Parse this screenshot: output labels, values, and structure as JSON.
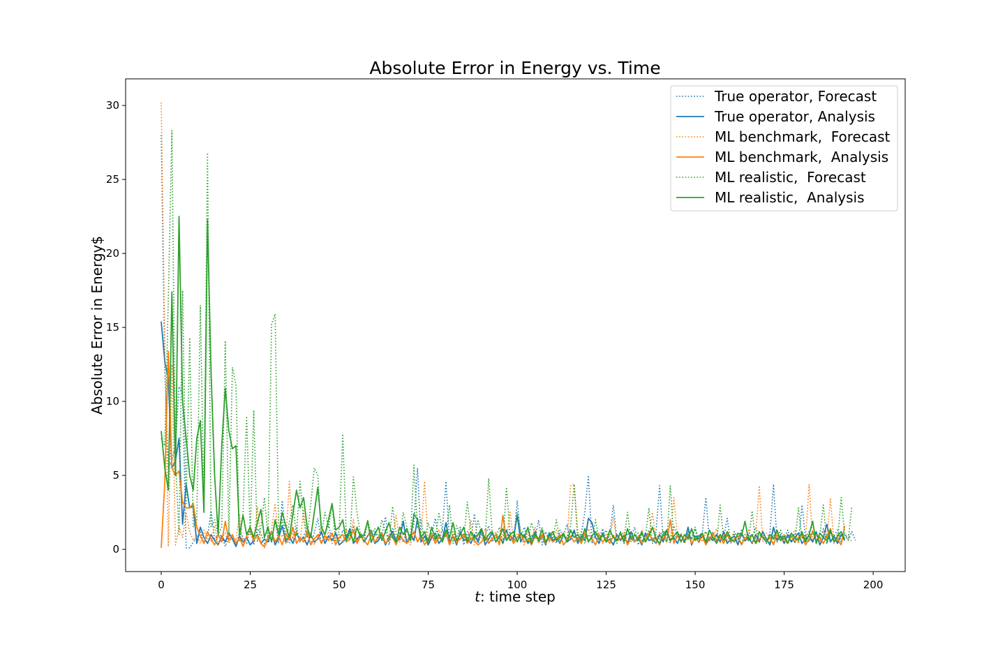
{
  "chart_data": {
    "type": "line",
    "title": "Absolute Error in Energy vs. Time",
    "xlabel_italic": "t",
    "xlabel": ": time step",
    "ylabel": "Absolute Error in Energy$",
    "xlim": [
      -10,
      209
    ],
    "ylim": [
      -1.5,
      31.8
    ],
    "xticks": [
      0,
      25,
      50,
      75,
      100,
      125,
      150,
      175,
      200
    ],
    "yticks": [
      0,
      5,
      10,
      15,
      20,
      25,
      30
    ],
    "grid": false,
    "legend_position": "upper right",
    "series": [
      {
        "name": "True operator, Forecast",
        "color": "#1f77b4",
        "style": "dotted",
        "x_start": 0,
        "values": [
          28.0,
          12.0,
          5.5,
          6.0,
          7.0,
          11.0,
          10.5,
          0.1,
          0.1,
          0.5,
          0.8,
          1.2,
          0.4,
          0.8,
          2.6,
          0.7,
          1.0,
          0.9,
          0.2,
          0.9,
          0.9,
          0.2,
          1.2,
          0.8,
          0.4,
          1.5,
          0.3,
          1.4,
          1.1,
          0.4,
          0.6,
          0.5,
          2.0,
          0.4,
          3.3,
          0.6,
          0.4,
          0.8,
          1.5,
          0.5,
          0.9,
          1.4,
          0.3,
          1.1,
          2.1,
          0.4,
          1.0,
          1.7,
          0.6,
          1.2,
          0.5,
          1.3,
          0.9,
          0.7,
          1.6,
          0.5,
          1.1,
          0.8,
          1.9,
          0.4,
          1.2,
          0.6,
          1.0,
          2.2,
          0.3,
          1.4,
          0.7,
          1.1,
          0.5,
          1.3,
          0.8,
          1.7,
          5.5,
          0.6,
          1.2,
          0.4,
          1.0,
          2.1,
          0.7,
          1.3,
          4.6,
          0.5,
          1.1,
          0.8,
          1.5,
          0.3,
          1.2,
          0.6,
          2.4,
          0.4,
          1.1,
          0.9,
          1.6,
          0.5,
          1.0,
          0.7,
          1.4,
          0.6,
          1.2,
          0.4,
          3.3,
          0.8,
          1.5,
          0.5,
          1.0,
          0.7,
          2.0,
          0.3,
          1.2,
          0.6,
          1.1,
          0.4,
          1.3,
          0.9,
          1.7,
          0.6,
          1.2,
          0.5,
          1.0,
          2.5,
          5.0,
          0.4,
          1.1,
          0.7,
          1.4,
          0.5,
          1.0,
          3.0,
          0.6,
          1.2,
          0.4,
          1.1,
          0.8,
          1.5,
          0.3,
          1.0,
          0.7,
          1.3,
          0.5,
          1.2,
          4.3,
          0.6,
          1.1,
          0.4,
          1.6,
          0.8,
          1.0,
          0.5,
          1.2,
          0.7,
          1.4,
          0.4,
          1.1,
          3.5,
          0.6,
          1.2,
          0.5,
          1.0,
          0.8,
          2.1,
          0.4,
          1.1,
          0.7,
          1.3,
          0.5,
          1.0,
          0.9,
          1.5,
          0.6,
          1.2,
          0.4,
          1.1,
          4.4,
          0.5,
          1.0,
          0.7,
          1.3,
          0.6,
          1.1,
          0.4,
          3.0,
          0.8,
          1.2,
          0.5,
          1.0,
          0.6,
          1.4,
          0.4,
          1.1,
          0.9,
          1.3,
          0.5,
          1.0,
          0.7,
          1.2,
          0.6
        ]
      },
      {
        "name": "True operator, Analysis",
        "color": "#1f77b4",
        "style": "solid",
        "x_start": 0,
        "values": [
          15.4,
          12.7,
          11.5,
          5.5,
          6.0,
          7.5,
          1.7,
          4.4,
          2.8,
          2.9,
          0.4,
          1.5,
          0.8,
          0.4,
          1.0,
          0.6,
          0.3,
          0.9,
          0.5,
          1.1,
          0.7,
          0.2,
          0.9,
          0.5,
          0.8,
          0.3,
          0.6,
          1.0,
          0.4,
          0.7,
          0.5,
          1.2,
          0.3,
          0.8,
          1.6,
          0.5,
          0.9,
          0.4,
          1.1,
          0.6,
          0.8,
          0.3,
          1.0,
          0.5,
          0.7,
          1.2,
          0.4,
          0.9,
          0.6,
          1.1,
          0.3,
          0.5,
          0.8,
          1.4,
          0.4,
          0.7,
          1.0,
          0.5,
          0.9,
          1.3,
          0.4,
          0.6,
          1.0,
          0.3,
          0.8,
          1.2,
          0.5,
          0.7,
          1.9,
          0.4,
          1.0,
          0.6,
          2.1,
          0.5,
          0.9,
          0.3,
          0.8,
          1.1,
          0.4,
          0.7,
          1.8,
          0.5,
          0.9,
          0.3,
          1.2,
          0.6,
          0.8,
          0.4,
          1.0,
          0.5,
          1.4,
          0.3,
          0.7,
          1.1,
          0.5,
          0.9,
          0.4,
          1.3,
          0.6,
          0.8,
          2.3,
          0.5,
          1.0,
          0.4,
          0.7,
          1.2,
          0.5,
          0.9,
          0.3,
          1.1,
          0.6,
          0.8,
          0.4,
          1.0,
          0.5,
          0.7,
          1.3,
          0.4,
          0.9,
          0.6,
          2.1,
          1.8,
          0.8,
          0.4,
          1.1,
          0.5,
          0.7,
          0.3,
          1.0,
          0.6,
          0.9,
          0.4,
          1.2,
          0.5,
          0.8,
          0.3,
          1.1,
          0.6,
          0.7,
          0.4,
          1.0,
          0.5,
          1.3,
          0.6,
          0.8,
          0.4,
          1.0,
          0.5,
          1.5,
          0.3,
          0.9,
          0.7,
          1.1,
          0.4,
          0.8,
          0.6,
          1.0,
          0.5,
          1.2,
          0.4,
          0.7,
          0.9,
          0.3,
          1.1,
          0.6,
          0.8,
          0.4,
          1.0,
          0.5,
          1.2,
          0.7,
          0.3,
          1.5,
          0.6,
          0.9,
          0.4,
          1.0,
          0.5,
          0.8,
          1.1,
          0.4,
          0.7,
          0.9,
          0.5,
          1.2,
          0.3,
          0.8,
          1.7,
          0.5,
          0.9,
          0.4,
          1.0,
          0.6
        ]
      },
      {
        "name": "ML benchmark,  Forecast",
        "color": "#ff7f0e",
        "style": "dotted",
        "x_start": 0,
        "values": [
          30.2,
          14.0,
          0.2,
          12.5,
          0.3,
          1.5,
          0.8,
          2.5,
          1.2,
          0.6,
          0.9,
          0.4,
          1.3,
          0.7,
          0.5,
          1.6,
          0.3,
          0.8,
          1.1,
          0.4,
          0.9,
          0.6,
          2.4,
          0.3,
          0.8,
          1.2,
          0.5,
          2.9,
          0.4,
          0.1,
          0.7,
          1.3,
          3.1,
          0.6,
          1.0,
          0.4,
          4.6,
          0.7,
          1.2,
          0.5,
          2.6,
          0.8,
          1.1,
          0.3,
          0.9,
          1.5,
          0.6,
          1.2,
          0.4,
          0.8,
          1.0,
          0.5,
          1.4,
          0.7,
          2.0,
          0.4,
          1.1,
          0.6,
          0.9,
          1.3,
          0.5,
          0.8,
          1.2,
          0.4,
          1.0,
          0.7,
          2.3,
          0.5,
          1.1,
          0.8,
          0.3,
          1.2,
          0.6,
          1.0,
          4.6,
          0.5,
          0.9,
          0.4,
          1.3,
          0.7,
          1.0,
          0.5,
          1.2,
          0.4,
          0.8,
          1.1,
          0.6,
          2.0,
          0.3,
          1.0,
          0.7,
          1.4,
          0.5,
          0.8,
          1.2,
          0.4,
          1.0,
          0.6,
          2.6,
          0.5,
          1.1,
          0.8,
          0.3,
          1.2,
          0.6,
          1.5,
          0.4,
          0.9,
          1.1,
          0.5,
          0.8,
          1.3,
          0.4,
          1.0,
          0.7,
          4.3,
          4.4,
          1.2,
          0.5,
          0.9,
          1.4,
          0.6,
          0.8,
          1.1,
          0.4,
          1.0,
          0.7,
          2.2,
          0.5,
          0.9,
          1.2,
          0.4,
          0.8,
          1.1,
          0.6,
          1.3,
          0.5,
          0.9,
          2.5,
          0.4,
          1.2,
          0.7,
          1.0,
          0.5,
          3.5,
          0.8,
          1.1,
          0.4,
          0.9,
          1.3,
          0.6,
          1.0,
          0.5,
          1.2,
          0.7,
          0.9,
          1.4,
          0.4,
          1.1,
          0.6,
          0.8,
          1.2,
          0.5,
          1.0,
          0.7,
          1.3,
          0.4,
          0.9,
          4.3,
          0.5,
          1.1,
          0.8,
          0.4,
          1.2,
          0.6,
          1.0,
          0.5,
          0.9,
          1.3,
          0.4,
          1.1,
          0.7,
          4.4,
          0.6,
          1.0,
          0.5,
          1.2,
          0.8,
          3.4,
          0.4,
          1.1,
          0.6,
          0.9,
          1.0,
          0.5
        ]
      },
      {
        "name": "ML benchmark,  Analysis",
        "color": "#ff7f0e",
        "style": "solid",
        "x_start": 0,
        "values": [
          0.1,
          4.5,
          13.4,
          5.5,
          5.0,
          5.3,
          3.2,
          2.8,
          2.8,
          3.1,
          1.5,
          0.9,
          0.4,
          1.2,
          0.7,
          0.3,
          1.0,
          0.5,
          1.9,
          0.6,
          1.0,
          0.4,
          0.8,
          0.2,
          0.9,
          1.5,
          0.6,
          1.0,
          0.4,
          0.2,
          0.8,
          1.2,
          0.5,
          0.9,
          0.3,
          1.1,
          0.6,
          1.5,
          0.4,
          0.8,
          0.5,
          1.2,
          0.3,
          0.7,
          1.0,
          0.4,
          0.9,
          0.6,
          1.1,
          0.3,
          0.8,
          1.0,
          0.5,
          0.7,
          1.3,
          0.4,
          0.9,
          0.6,
          0.3,
          1.0,
          0.5,
          0.8,
          1.1,
          0.4,
          0.7,
          0.9,
          0.3,
          1.0,
          0.6,
          0.4,
          0.8,
          1.2,
          0.5,
          0.9,
          0.3,
          0.7,
          1.0,
          0.4,
          0.8,
          0.6,
          1.1,
          0.3,
          0.9,
          0.5,
          0.7,
          1.0,
          0.4,
          0.8,
          0.6,
          0.3,
          0.5,
          0.9,
          0.4,
          0.7,
          1.0,
          0.3,
          2.3,
          0.6,
          0.9,
          0.4,
          0.8,
          1.1,
          0.5,
          0.7,
          0.3,
          0.9,
          0.6,
          1.0,
          0.4,
          0.8,
          0.5,
          0.7,
          1.0,
          0.3,
          0.6,
          0.9,
          0.5,
          0.8,
          0.4,
          1.1,
          0.6,
          0.7,
          0.3,
          1.0,
          0.5,
          0.8,
          0.4,
          0.9,
          0.6,
          0.7,
          1.0,
          0.3,
          0.8,
          0.5,
          0.9,
          0.4,
          0.7,
          1.1,
          0.6,
          0.8,
          0.3,
          1.0,
          0.5,
          2.0,
          0.4,
          0.9,
          0.6,
          0.7,
          1.0,
          0.4,
          0.8,
          0.5,
          0.9,
          0.3,
          0.7,
          1.1,
          0.6,
          0.8,
          0.4,
          1.0,
          0.5,
          0.7,
          0.9,
          0.3,
          0.8,
          0.6,
          1.0,
          0.4,
          0.7,
          0.9,
          0.5,
          0.8,
          0.3,
          1.0,
          0.6,
          0.7,
          0.4,
          0.9,
          0.5,
          0.8,
          1.0,
          0.3,
          0.7,
          1.2,
          0.6,
          0.8,
          0.4,
          0.9,
          1.4,
          0.5,
          0.7,
          0.3,
          1.6
        ]
      },
      {
        "name": "ML realistic,  Forecast",
        "color": "#2ca02c",
        "style": "dotted",
        "x_start": 0,
        "values": [
          7.5,
          7.0,
          17.0,
          28.3,
          6.0,
          1.0,
          17.5,
          3.0,
          14.3,
          1.5,
          2.0,
          16.5,
          3.0,
          26.8,
          1.5,
          2.0,
          1.0,
          1.5,
          14.1,
          1.0,
          12.3,
          11.1,
          0.5,
          2.5,
          9.0,
          1.0,
          9.4,
          0.5,
          1.5,
          3.5,
          0.8,
          15.2,
          15.9,
          1.0,
          2.0,
          0.5,
          1.8,
          3.0,
          1.0,
          4.6,
          2.0,
          0.8,
          3.0,
          5.5,
          5.0,
          1.0,
          2.5,
          1.5,
          3.0,
          0.5,
          1.3,
          7.8,
          1.0,
          0.6,
          4.9,
          2.5,
          1.0,
          0.5,
          2.0,
          1.0,
          1.4,
          0.8,
          2.0,
          1.2,
          0.5,
          2.9,
          1.0,
          0.7,
          2.5,
          1.5,
          0.6,
          5.7,
          1.5,
          2.0,
          0.5,
          1.8,
          1.0,
          0.6,
          2.5,
          1.2,
          0.8,
          3.0,
          0.4,
          1.6,
          1.0,
          0.7,
          3.2,
          1.2,
          0.6,
          2.0,
          1.0,
          0.5,
          4.8,
          1.0,
          0.7,
          1.5,
          0.4,
          4.2,
          1.0,
          0.6,
          2.5,
          1.2,
          0.8,
          0.5,
          1.8,
          1.0,
          0.6,
          1.5,
          0.4,
          1.2,
          0.7,
          2.0,
          0.5,
          1.0,
          0.8,
          1.6,
          4.4,
          0.6,
          1.2,
          0.4,
          1.0,
          0.7,
          2.0,
          0.5,
          0.9,
          1.3,
          0.6,
          1.0,
          0.4,
          1.2,
          0.7,
          2.5,
          0.5,
          0.9,
          1.1,
          0.6,
          0.8,
          2.8,
          0.4,
          1.0,
          0.7,
          1.3,
          0.5,
          4.3,
          0.6,
          1.1,
          0.8,
          0.4,
          1.0,
          0.7,
          1.5,
          0.5,
          0.9,
          1.2,
          0.6,
          0.8,
          0.4,
          3.0,
          0.7,
          1.0,
          0.5,
          1.2,
          0.8,
          0.4,
          1.0,
          0.6,
          2.6,
          0.5,
          0.9,
          1.1,
          0.7,
          0.4,
          1.0,
          0.6,
          1.3,
          0.5,
          0.8,
          1.1,
          0.4,
          2.8,
          0.7,
          1.0,
          0.5,
          1.2,
          0.6,
          0.9,
          3.0,
          0.4,
          1.1,
          0.7,
          0.5,
          3.5,
          1.0,
          0.6,
          2.9
        ]
      },
      {
        "name": "ML realistic,  Analysis",
        "color": "#2ca02c",
        "style": "solid",
        "x_start": 0,
        "values": [
          8.0,
          5.5,
          4.0,
          17.4,
          5.0,
          22.5,
          10.0,
          7.5,
          5.0,
          4.0,
          7.5,
          8.7,
          2.5,
          22.3,
          12.0,
          5.0,
          1.0,
          7.0,
          10.9,
          8.0,
          6.8,
          7.0,
          1.0,
          2.3,
          1.0,
          1.5,
          0.8,
          1.8,
          2.7,
          0.8,
          1.5,
          0.5,
          2.0,
          1.0,
          2.5,
          1.6,
          0.8,
          2.4,
          4.0,
          2.8,
          3.5,
          1.5,
          0.8,
          2.5,
          4.2,
          1.5,
          1.0,
          2.0,
          3.1,
          1.3,
          1.5,
          2.0,
          0.6,
          1.2,
          0.5,
          1.5,
          0.8,
          1.0,
          1.9,
          0.5,
          1.0,
          1.5,
          0.6,
          1.2,
          1.8,
          0.8,
          0.5,
          1.5,
          1.0,
          1.4,
          0.6,
          2.4,
          2.0,
          0.8,
          1.2,
          0.5,
          1.5,
          0.7,
          1.0,
          0.5,
          1.3,
          0.8,
          1.8,
          0.6,
          1.0,
          1.5,
          0.5,
          1.2,
          0.8,
          1.0,
          1.4,
          0.6,
          1.0,
          1.2,
          0.5,
          0.9,
          1.4,
          0.6,
          1.0,
          1.2,
          0.5,
          1.1,
          0.8,
          1.5,
          0.4,
          1.0,
          0.7,
          1.3,
          0.5,
          0.9,
          1.2,
          0.6,
          0.8,
          1.1,
          0.5,
          1.3,
          0.8,
          1.0,
          0.6,
          1.4,
          0.5,
          0.9,
          1.2,
          0.7,
          1.0,
          0.5,
          1.3,
          0.8,
          0.6,
          1.1,
          0.5,
          1.4,
          0.7,
          1.0,
          0.6,
          1.2,
          0.5,
          0.9,
          1.5,
          0.7,
          0.4,
          1.0,
          1.3,
          0.6,
          0.9,
          1.2,
          0.5,
          1.0,
          0.7,
          1.4,
          0.6,
          0.9,
          1.1,
          0.5,
          1.3,
          0.8,
          0.4,
          1.0,
          0.6,
          1.2,
          0.7,
          0.5,
          1.1,
          0.9,
          1.9,
          0.6,
          1.0,
          0.4,
          1.2,
          0.8,
          0.5,
          1.0,
          0.7,
          1.3,
          0.6,
          0.9,
          0.4,
          1.1,
          0.8,
          0.6,
          1.2,
          0.5,
          1.0,
          1.9,
          0.4,
          1.1,
          0.8,
          0.6,
          1.3,
          0.5,
          0.9,
          1.2,
          0.7
        ]
      }
    ]
  }
}
